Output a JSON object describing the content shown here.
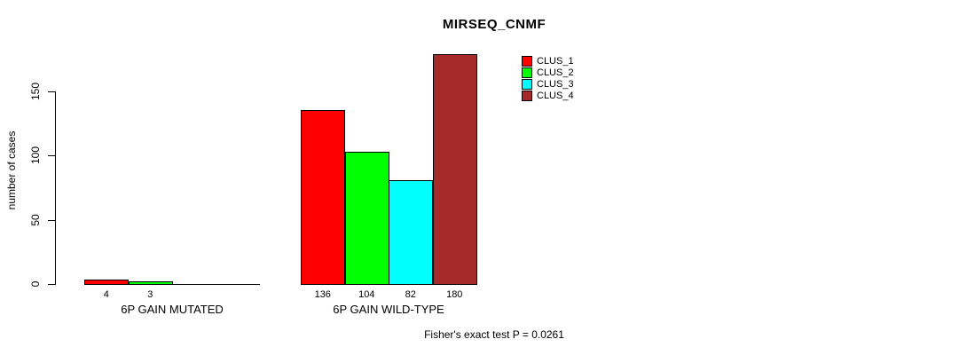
{
  "chart_data": {
    "type": "bar",
    "title": "MIRSEQ_CNMF",
    "ylabel": "number of cases",
    "xlabel": "",
    "categories": [
      "6P GAIN MUTATED",
      "6P GAIN WILD-TYPE"
    ],
    "series": [
      {
        "name": "CLUS_1",
        "color": "#FF0000",
        "values": [
          4,
          136
        ]
      },
      {
        "name": "CLUS_2",
        "color": "#00FF00",
        "values": [
          3,
          104
        ]
      },
      {
        "name": "CLUS_3",
        "color": "#00FFFF",
        "values": [
          0,
          82
        ]
      },
      {
        "name": "CLUS_4",
        "color": "#A52A2A",
        "values": [
          0,
          180
        ]
      }
    ],
    "yticks": [
      0,
      50,
      100,
      150
    ],
    "ylim": [
      0,
      185
    ],
    "grid": false,
    "bar_value_labels_shown": true,
    "legend_position": "top-right",
    "annotation": "Fisher's exact test P = 0.0261"
  }
}
